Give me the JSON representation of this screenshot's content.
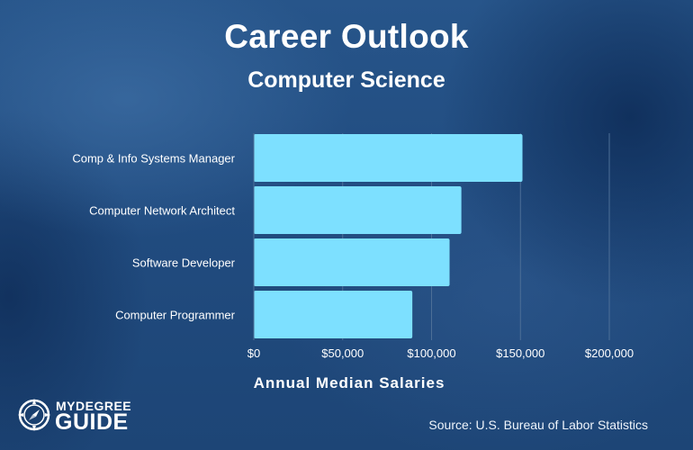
{
  "header": {
    "title": "Career Outlook",
    "subtitle": "Computer Science"
  },
  "chart_data": {
    "type": "bar",
    "orientation": "horizontal",
    "title": "Career Outlook",
    "subtitle": "Computer Science",
    "xlabel": "Annual Median Salaries",
    "ylabel": "",
    "categories": [
      "Comp & Info Systems Manager",
      "Computer Network Architect",
      "Software Developer",
      "Computer Programmer"
    ],
    "values": [
      151150,
      116780,
      110140,
      89190
    ],
    "xlim": [
      0,
      200000
    ],
    "xticks": [
      0,
      50000,
      100000,
      150000,
      200000
    ],
    "xtick_labels": [
      "$0",
      "$50,000",
      "$100,000",
      "$150,000",
      "$200,000"
    ],
    "grid": true,
    "legend": "none",
    "bar_color": "#7de0ff"
  },
  "footer": {
    "source": "Source: U.S. Bureau of Labor Statistics",
    "logo_top": "MYDEGREE",
    "logo_bottom": "GUIDE"
  },
  "colors": {
    "background": "#1d4576",
    "bar": "#7de0ff",
    "text": "#ffffff",
    "grid": "#4d6f97"
  }
}
